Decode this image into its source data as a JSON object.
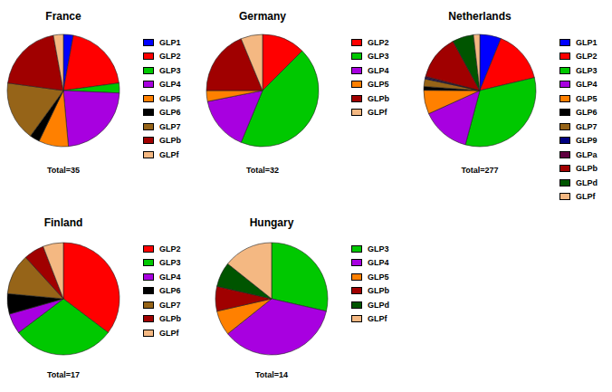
{
  "chart_data": [
    {
      "type": "pie",
      "title": "France",
      "subtitle": "Total=35",
      "legend": "right",
      "categories": [
        "GLP1",
        "GLP2",
        "GLP3",
        "GLP4",
        "GLP5",
        "GLP6",
        "GLP7",
        "GLPb",
        "GLPf"
      ],
      "values": [
        1,
        7,
        1,
        8,
        3,
        1,
        6,
        7,
        1
      ],
      "colors": [
        "#0000ff",
        "#ff0000",
        "#00c800",
        "#a800e0",
        "#ff8000",
        "#000000",
        "#966418",
        "#a00000",
        "#f4b882"
      ]
    },
    {
      "type": "pie",
      "title": "Germany",
      "subtitle": "Total=32",
      "legend": "right",
      "categories": [
        "GLP2",
        "GLP3",
        "GLP4",
        "GLP5",
        "GLPb",
        "GLPf"
      ],
      "values": [
        4,
        14,
        5,
        1,
        6,
        2
      ],
      "colors": [
        "#ff0000",
        "#00c800",
        "#a800e0",
        "#ff8000",
        "#a00000",
        "#f4b882"
      ]
    },
    {
      "type": "pie",
      "title": "Netherlands",
      "subtitle": "Total=277",
      "legend": "right",
      "categories": [
        "GLP1",
        "GLP2",
        "GLP3",
        "GLP4",
        "GLP5",
        "GLP6",
        "GLP7",
        "GLP9",
        "GLPa",
        "GLPb",
        "GLPd",
        "GLPf"
      ],
      "values": [
        17,
        42,
        91,
        39,
        19,
        3,
        6,
        1,
        1,
        36,
        17,
        5
      ],
      "colors": [
        "#0000ff",
        "#ff0000",
        "#00c800",
        "#a800e0",
        "#ff8000",
        "#000000",
        "#966418",
        "#000080",
        "#600040",
        "#a00000",
        "#005500",
        "#f4b882"
      ]
    },
    {
      "type": "pie",
      "title": "Finland",
      "subtitle": "Total=17",
      "legend": "right",
      "categories": [
        "GLP2",
        "GLP3",
        "GLP4",
        "GLP6",
        "GLP7",
        "GLPb",
        "GLPf"
      ],
      "values": [
        6,
        5,
        1,
        1,
        2,
        1,
        1
      ],
      "colors": [
        "#ff0000",
        "#00c800",
        "#a800e0",
        "#000000",
        "#966418",
        "#a00000",
        "#f4b882"
      ]
    },
    {
      "type": "pie",
      "title": "Hungary",
      "subtitle": "Total=14",
      "legend": "right",
      "categories": [
        "GLP3",
        "GLP4",
        "GLP5",
        "GLPb",
        "GLPd",
        "GLPf"
      ],
      "values": [
        4,
        5,
        1,
        1,
        1,
        2
      ],
      "colors": [
        "#00c800",
        "#a800e0",
        "#ff8000",
        "#a00000",
        "#005500",
        "#f4b882"
      ]
    }
  ]
}
